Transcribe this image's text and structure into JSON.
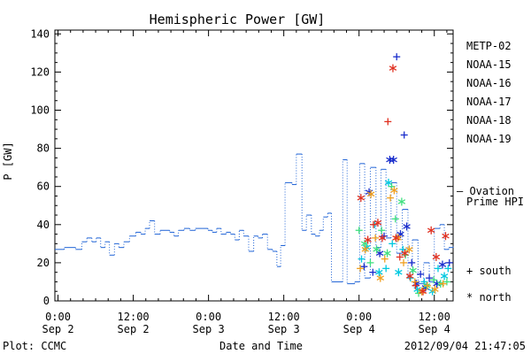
{
  "chart_data": {
    "type": "scatter",
    "title": "Hemispheric Power [GW]",
    "ylabel": "P [GW]",
    "xlabel": "Date and Time",
    "x_units": "hours since 2012-09-02 00:00",
    "xlim": [
      -0.5,
      63
    ],
    "ylim": [
      0,
      142
    ],
    "yticks": [
      0,
      20,
      40,
      60,
      80,
      100,
      120,
      140
    ],
    "xticks": [
      {
        "x": 0,
        "time": "0:00",
        "date": "Sep 2"
      },
      {
        "x": 12,
        "time": "12:00",
        "date": "Sep 2"
      },
      {
        "x": 24,
        "time": "0:00",
        "date": "Sep 3"
      },
      {
        "x": 36,
        "time": "12:00",
        "date": "Sep 3"
      },
      {
        "x": 48,
        "time": "0:00",
        "date": "Sep 4"
      },
      {
        "x": 60,
        "time": "12:00",
        "date": "Sep 4"
      }
    ],
    "footer_left": "Plot: CCMC",
    "footer_right": "2012/09/04 21:47:05",
    "markers_legend": [
      {
        "symbol": "+",
        "label": "south"
      },
      {
        "symbol": "*",
        "label": "north"
      }
    ],
    "series": [
      {
        "name": "METP-02",
        "color": "#000000",
        "kind": "points",
        "points": []
      },
      {
        "name": "NOAA-15",
        "color": "#1a2ecc",
        "kind": "points",
        "points": [
          {
            "x": 48.8,
            "y": 18,
            "m": "+"
          },
          {
            "x": 49.6,
            "y": 57,
            "m": "*"
          },
          {
            "x": 50.2,
            "y": 15,
            "m": "+"
          },
          {
            "x": 51.3,
            "y": 25,
            "m": "*"
          },
          {
            "x": 52.0,
            "y": 34,
            "m": "+"
          },
          {
            "x": 52.9,
            "y": 74,
            "m": "*"
          },
          {
            "x": 53.5,
            "y": 74,
            "m": "*"
          },
          {
            "x": 54.0,
            "y": 128,
            "m": "+"
          },
          {
            "x": 54.6,
            "y": 35,
            "m": "*"
          },
          {
            "x": 55.2,
            "y": 87,
            "m": "+"
          },
          {
            "x": 55.6,
            "y": 39,
            "m": "*"
          },
          {
            "x": 56.4,
            "y": 20,
            "m": "+"
          },
          {
            "x": 57.1,
            "y": 9,
            "m": "*"
          },
          {
            "x": 57.8,
            "y": 14,
            "m": "+"
          },
          {
            "x": 58.6,
            "y": 7,
            "m": "*"
          },
          {
            "x": 59.2,
            "y": 12,
            "m": "+"
          },
          {
            "x": 60.4,
            "y": 9,
            "m": "*"
          },
          {
            "x": 61.3,
            "y": 19,
            "m": "*"
          },
          {
            "x": 62.4,
            "y": 20,
            "m": "+"
          }
        ]
      },
      {
        "name": "NOAA-16",
        "color": "#00c8e0",
        "kind": "points",
        "points": [
          {
            "x": 48.4,
            "y": 22,
            "m": "+"
          },
          {
            "x": 49.2,
            "y": 28,
            "m": "*"
          },
          {
            "x": 50.5,
            "y": 40,
            "m": "+"
          },
          {
            "x": 51.2,
            "y": 15,
            "m": "*"
          },
          {
            "x": 52.3,
            "y": 17,
            "m": "+"
          },
          {
            "x": 52.7,
            "y": 62,
            "m": "*"
          },
          {
            "x": 53.3,
            "y": 30,
            "m": "+"
          },
          {
            "x": 54.3,
            "y": 15,
            "m": "*"
          },
          {
            "x": 55.0,
            "y": 27,
            "m": "+"
          },
          {
            "x": 56.2,
            "y": 12,
            "m": "+"
          },
          {
            "x": 57.3,
            "y": 6,
            "m": "*"
          },
          {
            "x": 58.4,
            "y": 10,
            "m": "+"
          },
          {
            "x": 59.7,
            "y": 5,
            "m": "*"
          },
          {
            "x": 60.6,
            "y": 17,
            "m": "+"
          },
          {
            "x": 61.6,
            "y": 13,
            "m": "*"
          },
          {
            "x": 62.2,
            "y": 17,
            "m": "+"
          }
        ]
      },
      {
        "name": "NOAA-17",
        "color": "#40e080",
        "kind": "points",
        "points": [
          {
            "x": 48.0,
            "y": 37,
            "m": "+"
          },
          {
            "x": 48.9,
            "y": 30,
            "m": "*"
          },
          {
            "x": 49.8,
            "y": 20,
            "m": "+"
          },
          {
            "x": 50.8,
            "y": 27,
            "m": "*"
          },
          {
            "x": 51.6,
            "y": 37,
            "m": "+"
          },
          {
            "x": 52.5,
            "y": 25,
            "m": "*"
          },
          {
            "x": 53.2,
            "y": 60,
            "m": "+"
          },
          {
            "x": 53.8,
            "y": 43,
            "m": "+"
          },
          {
            "x": 54.8,
            "y": 52,
            "m": "*"
          },
          {
            "x": 55.4,
            "y": 24,
            "m": "+"
          },
          {
            "x": 56.6,
            "y": 16,
            "m": "*"
          },
          {
            "x": 57.5,
            "y": 4,
            "m": "+"
          },
          {
            "x": 58.8,
            "y": 8,
            "m": "*"
          },
          {
            "x": 59.9,
            "y": 11,
            "m": "+"
          },
          {
            "x": 61.0,
            "y": 9,
            "m": "*"
          },
          {
            "x": 62.0,
            "y": 10,
            "m": "+"
          }
        ]
      },
      {
        "name": "NOAA-18",
        "color": "#f0a020",
        "kind": "points",
        "points": [
          {
            "x": 48.2,
            "y": 17,
            "m": "+"
          },
          {
            "x": 49.0,
            "y": 27,
            "m": "*"
          },
          {
            "x": 49.9,
            "y": 56,
            "m": "*"
          },
          {
            "x": 50.6,
            "y": 33,
            "m": "+"
          },
          {
            "x": 51.4,
            "y": 12,
            "m": "*"
          },
          {
            "x": 52.1,
            "y": 22,
            "m": "+"
          },
          {
            "x": 53.0,
            "y": 54,
            "m": "+"
          },
          {
            "x": 53.6,
            "y": 58,
            "m": "*"
          },
          {
            "x": 54.2,
            "y": 33,
            "m": "*"
          },
          {
            "x": 55.1,
            "y": 20,
            "m": "+"
          },
          {
            "x": 56.0,
            "y": 27,
            "m": "*"
          },
          {
            "x": 56.9,
            "y": 10,
            "m": "+"
          },
          {
            "x": 58.0,
            "y": 5,
            "m": "*"
          },
          {
            "x": 58.9,
            "y": 8,
            "m": "+"
          },
          {
            "x": 60.1,
            "y": 6,
            "m": "*"
          },
          {
            "x": 61.4,
            "y": 9,
            "m": "+"
          }
        ]
      },
      {
        "name": "NOAA-19",
        "color": "#e03020",
        "kind": "points",
        "points": [
          {
            "x": 48.3,
            "y": 54,
            "m": "*"
          },
          {
            "x": 49.4,
            "y": 32,
            "m": "*"
          },
          {
            "x": 50.3,
            "y": 40,
            "m": "+"
          },
          {
            "x": 51.0,
            "y": 41,
            "m": "*"
          },
          {
            "x": 51.7,
            "y": 33,
            "m": "*"
          },
          {
            "x": 52.6,
            "y": 94,
            "m": "+"
          },
          {
            "x": 53.4,
            "y": 122,
            "m": "*"
          },
          {
            "x": 53.9,
            "y": 33,
            "m": "*"
          },
          {
            "x": 54.5,
            "y": 23,
            "m": "+"
          },
          {
            "x": 55.3,
            "y": 25,
            "m": "*"
          },
          {
            "x": 56.1,
            "y": 13,
            "m": "*"
          },
          {
            "x": 57.0,
            "y": 8,
            "m": "+"
          },
          {
            "x": 58.2,
            "y": 5,
            "m": "*"
          },
          {
            "x": 59.5,
            "y": 37,
            "m": "*"
          },
          {
            "x": 60.3,
            "y": 23,
            "m": "*"
          },
          {
            "x": 61.8,
            "y": 34,
            "m": "*"
          }
        ]
      },
      {
        "name": "Ovation Prime HPI",
        "color": "#1f63d6",
        "kind": "step",
        "points": [
          {
            "x": -0.5,
            "y": 27
          },
          {
            "x": 1.0,
            "y": 28
          },
          {
            "x": 2.8,
            "y": 27
          },
          {
            "x": 3.8,
            "y": 31
          },
          {
            "x": 4.6,
            "y": 33
          },
          {
            "x": 5.4,
            "y": 31
          },
          {
            "x": 6.1,
            "y": 33
          },
          {
            "x": 6.8,
            "y": 28
          },
          {
            "x": 7.5,
            "y": 31
          },
          {
            "x": 8.2,
            "y": 24
          },
          {
            "x": 9.0,
            "y": 30
          },
          {
            "x": 9.7,
            "y": 28
          },
          {
            "x": 10.5,
            "y": 31
          },
          {
            "x": 11.4,
            "y": 34
          },
          {
            "x": 12.4,
            "y": 36
          },
          {
            "x": 13.2,
            "y": 35
          },
          {
            "x": 13.9,
            "y": 38
          },
          {
            "x": 14.6,
            "y": 42
          },
          {
            "x": 15.4,
            "y": 35
          },
          {
            "x": 16.3,
            "y": 37
          },
          {
            "x": 17.0,
            "y": 37
          },
          {
            "x": 17.8,
            "y": 36
          },
          {
            "x": 18.5,
            "y": 34
          },
          {
            "x": 19.2,
            "y": 37
          },
          {
            "x": 20.1,
            "y": 38
          },
          {
            "x": 21.0,
            "y": 37
          },
          {
            "x": 21.9,
            "y": 38
          },
          {
            "x": 23.0,
            "y": 38
          },
          {
            "x": 23.9,
            "y": 37
          },
          {
            "x": 24.6,
            "y": 36
          },
          {
            "x": 25.3,
            "y": 38
          },
          {
            "x": 26.0,
            "y": 35
          },
          {
            "x": 26.8,
            "y": 36
          },
          {
            "x": 27.5,
            "y": 35
          },
          {
            "x": 28.2,
            "y": 32
          },
          {
            "x": 28.9,
            "y": 37
          },
          {
            "x": 29.6,
            "y": 34
          },
          {
            "x": 30.4,
            "y": 26
          },
          {
            "x": 31.2,
            "y": 34
          },
          {
            "x": 31.9,
            "y": 33
          },
          {
            "x": 32.6,
            "y": 35
          },
          {
            "x": 33.4,
            "y": 27
          },
          {
            "x": 34.2,
            "y": 26
          },
          {
            "x": 34.9,
            "y": 18
          },
          {
            "x": 35.5,
            "y": 29
          },
          {
            "x": 36.2,
            "y": 62
          },
          {
            "x": 37.3,
            "y": 61
          },
          {
            "x": 38.0,
            "y": 77
          },
          {
            "x": 38.9,
            "y": 37
          },
          {
            "x": 39.6,
            "y": 45
          },
          {
            "x": 40.4,
            "y": 35
          },
          {
            "x": 41.0,
            "y": 34
          },
          {
            "x": 41.7,
            "y": 37
          },
          {
            "x": 42.3,
            "y": 44
          },
          {
            "x": 43.0,
            "y": 46
          },
          {
            "x": 43.6,
            "y": 10
          },
          {
            "x": 45.4,
            "y": 74
          },
          {
            "x": 46.1,
            "y": 9
          },
          {
            "x": 47.3,
            "y": 10
          },
          {
            "x": 48.1,
            "y": 72
          },
          {
            "x": 48.9,
            "y": 12
          },
          {
            "x": 49.8,
            "y": 70
          },
          {
            "x": 50.7,
            "y": 28
          },
          {
            "x": 51.5,
            "y": 69
          },
          {
            "x": 52.3,
            "y": 33
          },
          {
            "x": 53.1,
            "y": 62
          },
          {
            "x": 54.0,
            "y": 25
          },
          {
            "x": 54.9,
            "y": 48
          },
          {
            "x": 55.8,
            "y": 12
          },
          {
            "x": 56.5,
            "y": 32
          },
          {
            "x": 57.4,
            "y": 9
          },
          {
            "x": 58.3,
            "y": 20
          },
          {
            "x": 59.2,
            "y": 10
          },
          {
            "x": 60.0,
            "y": 38
          },
          {
            "x": 60.9,
            "y": 40
          },
          {
            "x": 61.6,
            "y": 27
          },
          {
            "x": 62.3,
            "y": 28
          },
          {
            "x": 63.0,
            "y": 29
          }
        ]
      }
    ]
  }
}
